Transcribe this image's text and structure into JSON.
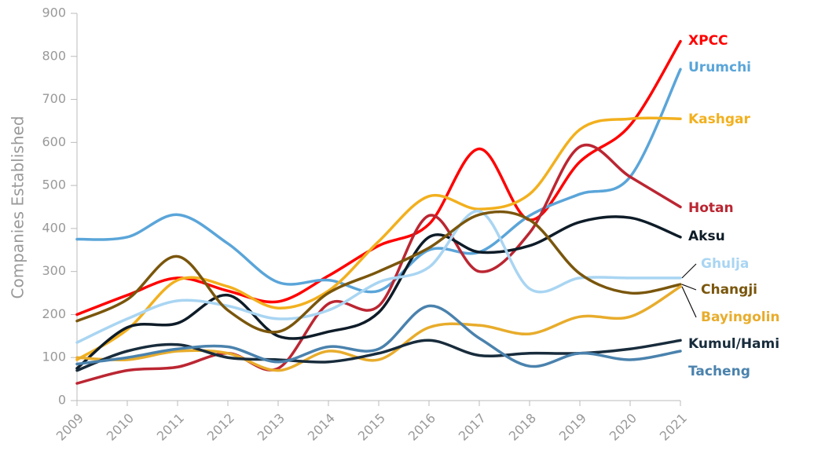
{
  "chart_data": {
    "type": "line",
    "y_label": "Companies Established",
    "categories": [
      "2009",
      "2010",
      "2011",
      "2012",
      "2013",
      "2014",
      "2015",
      "2016",
      "2017",
      "2018",
      "2019",
      "2020",
      "2021"
    ],
    "ylim": [
      0,
      900
    ],
    "yticks": [
      0,
      100,
      200,
      300,
      400,
      500,
      600,
      700,
      800,
      900
    ],
    "series": [
      {
        "name": "XPCC",
        "color": "#ff0000",
        "values": [
          200,
          245,
          285,
          255,
          230,
          290,
          360,
          410,
          585,
          420,
          555,
          640,
          835
        ]
      },
      {
        "name": "Urumchi",
        "color": "#5aa5d9",
        "values": [
          375,
          380,
          432,
          365,
          275,
          280,
          255,
          350,
          345,
          430,
          480,
          520,
          770
        ]
      },
      {
        "name": "Kashgar",
        "color": "#f2b01e",
        "values": [
          95,
          165,
          280,
          265,
          215,
          255,
          370,
          475,
          445,
          480,
          630,
          655,
          655
        ]
      },
      {
        "name": "Hotan",
        "color": "#bb2632",
        "values": [
          40,
          70,
          78,
          110,
          75,
          225,
          220,
          430,
          300,
          390,
          590,
          520,
          450
        ]
      },
      {
        "name": "Aksu",
        "color": "#0e1c28",
        "values": [
          75,
          170,
          180,
          245,
          150,
          160,
          205,
          380,
          345,
          360,
          415,
          425,
          380
        ]
      },
      {
        "name": "Ghulja",
        "color": "#a9d5f2",
        "values": [
          135,
          190,
          232,
          220,
          190,
          210,
          275,
          310,
          440,
          260,
          285,
          285,
          285
        ]
      },
      {
        "name": "Changji",
        "color": "#7a560c",
        "values": [
          185,
          235,
          335,
          210,
          160,
          250,
          300,
          355,
          432,
          420,
          295,
          250,
          270
        ]
      },
      {
        "name": "Bayingolin",
        "color": "#e8ac2c",
        "values": [
          100,
          95,
          115,
          110,
          70,
          115,
          95,
          170,
          175,
          155,
          195,
          195,
          265
        ]
      },
      {
        "name": "Kumul/Hami",
        "color": "#182c3c",
        "values": [
          70,
          115,
          130,
          100,
          95,
          90,
          110,
          140,
          105,
          110,
          110,
          120,
          140
        ]
      },
      {
        "name": "Tacheng",
        "color": "#4a82ad",
        "values": [
          85,
          100,
          120,
          125,
          90,
          125,
          120,
          220,
          145,
          80,
          110,
          95,
          115
        ]
      }
    ]
  }
}
